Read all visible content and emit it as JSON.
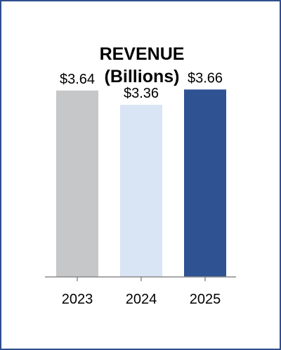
{
  "chart_data": {
    "type": "bar",
    "title": "REVENUE",
    "subtitle": "(Billions)",
    "categories": [
      "2023",
      "2024",
      "2025"
    ],
    "values": [
      3.64,
      3.36,
      3.66
    ],
    "data_labels": [
      "$3.64",
      "$3.36",
      "$3.66"
    ],
    "colors": [
      "#c6c7c9",
      "#d9e4f4",
      "#2f5293"
    ],
    "ylim": [
      0,
      4.2
    ],
    "grid": false,
    "legend": "none",
    "xlabel": "",
    "ylabel": ""
  },
  "frame_color": "#2f4f8f"
}
